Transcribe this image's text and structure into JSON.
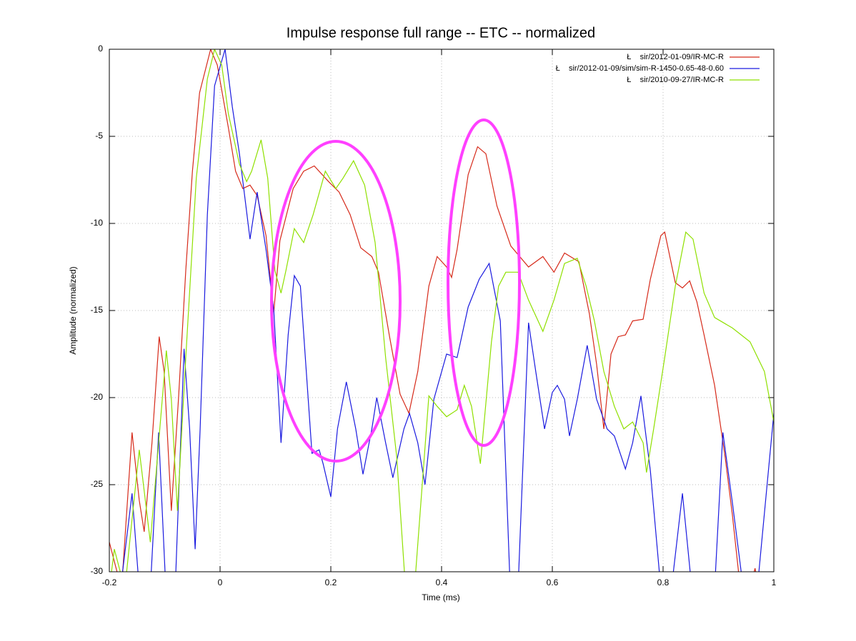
{
  "chart_data": {
    "type": "line",
    "title": "Impulse response full range -- ETC -- normalized",
    "x_label": "Time (ms)",
    "y_label": "Amplitude (normalized)",
    "xlim": [
      -0.2,
      1
    ],
    "ylim": [
      -30,
      0
    ],
    "xticks": [
      -0.2,
      0,
      0.2,
      0.4,
      0.6,
      0.8,
      1
    ],
    "yticks": [
      0,
      -5,
      -10,
      -15,
      -20,
      -25,
      -30
    ],
    "grid": true,
    "legend": "top-right",
    "series": [
      {
        "name": "Ł    sir/2012-01-09/IR-MC-R",
        "color": "#d62a1a",
        "x": [
          -0.2,
          -0.178,
          -0.159,
          -0.146,
          -0.137,
          -0.123,
          -0.11,
          -0.101,
          -0.088,
          -0.075,
          -0.062,
          -0.05,
          -0.037,
          -0.017,
          -0.005,
          0.015,
          0.028,
          0.041,
          0.054,
          0.067,
          0.083,
          0.097,
          0.108,
          0.132,
          0.151,
          0.17,
          0.196,
          0.215,
          0.235,
          0.254,
          0.274,
          0.286,
          0.306,
          0.325,
          0.341,
          0.357,
          0.377,
          0.392,
          0.409,
          0.418,
          0.428,
          0.448,
          0.465,
          0.48,
          0.5,
          0.525,
          0.557,
          0.583,
          0.603,
          0.622,
          0.648,
          0.667,
          0.68,
          0.693,
          0.706,
          0.719,
          0.732,
          0.745,
          0.764,
          0.777,
          0.796,
          0.803,
          0.822,
          0.835,
          0.848,
          0.861,
          0.874,
          0.893,
          0.912,
          0.925,
          0.938,
          0.957,
          0.966,
          0.973
        ],
        "values": [
          -28.3,
          -31,
          -22,
          -25.9,
          -27.7,
          -22.6,
          -16.5,
          -18.5,
          -26.5,
          -20,
          -12.7,
          -7,
          -2.5,
          0,
          -0.9,
          -4.5,
          -7,
          -8,
          -7.8,
          -8.4,
          -10.7,
          -15.1,
          -11,
          -8,
          -7,
          -6.7,
          -7.6,
          -8.2,
          -9.5,
          -11.4,
          -11.9,
          -12.8,
          -16.5,
          -19.8,
          -20.9,
          -18.5,
          -13.6,
          -11.9,
          -12.5,
          -13.1,
          -11.5,
          -7.2,
          -5.6,
          -6,
          -9,
          -11.3,
          -12.5,
          -11.9,
          -12.8,
          -11.7,
          -12.2,
          -15.2,
          -18.1,
          -21.8,
          -17.5,
          -16.5,
          -16.4,
          -15.6,
          -15.5,
          -13.2,
          -10.7,
          -10.5,
          -13.4,
          -13.7,
          -13.3,
          -14.5,
          -16.4,
          -19.3,
          -23.4,
          -26.7,
          -30.5,
          -31,
          -29.8,
          -31
        ]
      },
      {
        "name": "Ł    sir/2012-01-09/sim/sim-R-1450-0.65-48-0.60",
        "color": "#1a1adf",
        "x": [
          -0.2,
          -0.178,
          -0.159,
          -0.146,
          -0.126,
          -0.111,
          -0.098,
          -0.081,
          -0.065,
          -0.055,
          -0.045,
          -0.036,
          -0.023,
          -0.01,
          0.009,
          0.022,
          0.035,
          0.054,
          0.067,
          0.083,
          0.097,
          0.11,
          0.123,
          0.134,
          0.145,
          0.166,
          0.179,
          0.186,
          0.2,
          0.212,
          0.228,
          0.245,
          0.258,
          0.274,
          0.283,
          0.299,
          0.312,
          0.332,
          0.342,
          0.357,
          0.37,
          0.386,
          0.409,
          0.428,
          0.448,
          0.468,
          0.486,
          0.506,
          0.524,
          0.538,
          0.557,
          0.57,
          0.586,
          0.6,
          0.609,
          0.622,
          0.631,
          0.645,
          0.663,
          0.68,
          0.699,
          0.712,
          0.732,
          0.745,
          0.76,
          0.777,
          0.796,
          0.815,
          0.835,
          0.852,
          0.874,
          0.893,
          0.908,
          0.925,
          0.945,
          0.97,
          1.0
        ],
        "values": [
          -31,
          -30.5,
          -25.5,
          -31,
          -31,
          -22,
          -31,
          -31,
          -17.2,
          -21.8,
          -28.7,
          -21.8,
          -9.5,
          -2.1,
          0,
          -3.3,
          -6,
          -10.9,
          -8.2,
          -11.5,
          -15,
          -22.6,
          -16.4,
          -13,
          -13.6,
          -23.2,
          -23,
          -23.8,
          -25.7,
          -21.8,
          -19.1,
          -21.8,
          -24.4,
          -21.8,
          -20,
          -22.6,
          -24.6,
          -21.8,
          -20.9,
          -22.6,
          -25,
          -20.1,
          -17.5,
          -17.7,
          -14.8,
          -13.2,
          -12.3,
          -15.6,
          -31,
          -31,
          -15.7,
          -18.5,
          -21.8,
          -19.7,
          -19.3,
          -20.1,
          -22.2,
          -20.1,
          -17,
          -20.1,
          -21.8,
          -22.2,
          -24.1,
          -22.6,
          -19.9,
          -24.2,
          -31,
          -31,
          -25.5,
          -31,
          -31,
          -31,
          -22,
          -26,
          -31,
          -31,
          -20.9
        ]
      },
      {
        "name": "Ł    sir/2010-09-27/IR-MC-R",
        "color": "#8fe000",
        "x": [
          -0.2,
          -0.191,
          -0.172,
          -0.146,
          -0.126,
          -0.097,
          -0.088,
          -0.077,
          -0.062,
          -0.043,
          -0.023,
          -0.01,
          0.003,
          0.015,
          0.035,
          0.048,
          0.057,
          0.074,
          0.086,
          0.099,
          0.11,
          0.119,
          0.134,
          0.151,
          0.168,
          0.19,
          0.209,
          0.222,
          0.241,
          0.261,
          0.28,
          0.299,
          0.319,
          0.335,
          0.351,
          0.377,
          0.392,
          0.409,
          0.428,
          0.441,
          0.454,
          0.47,
          0.49,
          0.503,
          0.516,
          0.538,
          0.557,
          0.583,
          0.603,
          0.622,
          0.645,
          0.661,
          0.676,
          0.693,
          0.712,
          0.729,
          0.745,
          0.764,
          0.77,
          0.783,
          0.803,
          0.822,
          0.841,
          0.854,
          0.874,
          0.893,
          0.925,
          0.957,
          0.983,
          1.0
        ],
        "values": [
          -31,
          -28.7,
          -31,
          -23,
          -28.3,
          -17.3,
          -20.1,
          -26.5,
          -17.7,
          -7.4,
          -1.7,
          0,
          -0.9,
          -3.7,
          -6.6,
          -7.6,
          -7,
          -5.2,
          -7.4,
          -12.7,
          -14,
          -12.7,
          -10.3,
          -11.1,
          -9.5,
          -7,
          -8,
          -7.4,
          -6.4,
          -7.8,
          -11.1,
          -17.7,
          -23.4,
          -31,
          -31,
          -19.9,
          -20.5,
          -21.1,
          -20.7,
          -19.3,
          -20.5,
          -23.8,
          -16.8,
          -13.6,
          -12.8,
          -12.8,
          -14.4,
          -16.2,
          -14.4,
          -12.3,
          -12,
          -13.6,
          -15.6,
          -18.5,
          -20.5,
          -21.8,
          -21.4,
          -22.6,
          -24.3,
          -21.8,
          -17.7,
          -13.6,
          -10.5,
          -10.9,
          -14,
          -15.4,
          -16,
          -16.8,
          -18.5,
          -21.4
        ]
      }
    ]
  }
}
